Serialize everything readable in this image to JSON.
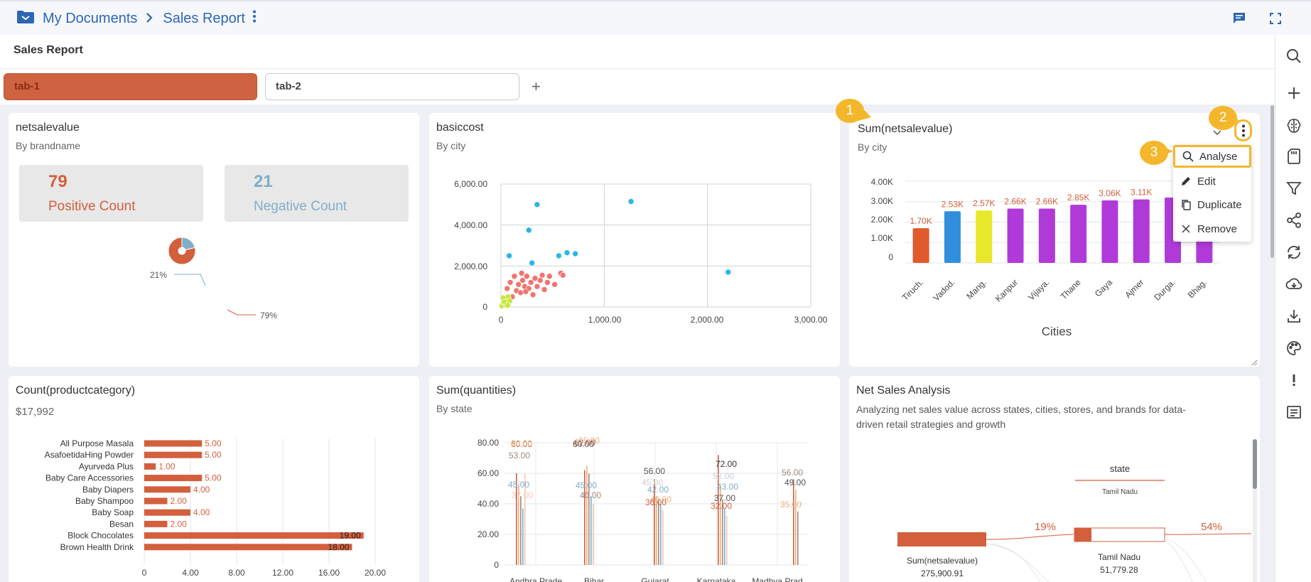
{
  "header": {
    "root_crumb": "My Documents",
    "report_crumb": "Sales Report",
    "page_title": "Sales Report"
  },
  "tabs": [
    {
      "label": "tab-1",
      "active": true
    },
    {
      "label": "tab-2",
      "active": false
    }
  ],
  "add_tab": "+",
  "cards": {
    "net": {
      "title": "netsalevalue",
      "subtitle": "By brandname",
      "positive_value": "79",
      "positive_label": "Positive Count",
      "negative_value": "21",
      "negative_label": "Negative Count",
      "pie_neg_label": "21%",
      "pie_pos_label": "79%",
      "positive_color": "#d35f3d",
      "negative_color": "#7faec8"
    },
    "basiccost": {
      "title": "basiccost",
      "subtitle": "By city",
      "y_ticks": [
        "6,000.00",
        "4,000.00",
        "2,000.00",
        "0"
      ],
      "x_ticks": [
        "0",
        "1,000.00",
        "2,000.00",
        "3,000.00"
      ]
    },
    "sumnet": {
      "title": "Sum(netsalevalue)",
      "subtitle": "By city",
      "y_ticks": [
        "4.00K",
        "3.00K",
        "2.00K",
        "1.00K",
        "0"
      ],
      "xlabel": "Cities"
    },
    "count": {
      "title": "Count(productcategory)",
      "subtitle": "$17,992",
      "x_ticks": [
        "0",
        "4.00",
        "8.00",
        "12.00",
        "16.00",
        "20.00"
      ]
    },
    "qty": {
      "title": "Sum(quantities)",
      "subtitle": "By state",
      "y_ticks": [
        "80.00",
        "60.00",
        "40.00",
        "20.00",
        "0"
      ],
      "x_ticks": [
        "Andhra Prade",
        "Bihar",
        "Gujarat",
        "Karnataka",
        "Madhya Prad"
      ],
      "labels": [
        {
          "text": "60.00",
          "color": "#d35f3d"
        },
        {
          "text": "60.00",
          "color": "#e9b27c"
        },
        {
          "text": "53.00",
          "color": "#a1887f"
        },
        {
          "text": "45.00",
          "color": "#7faec8"
        },
        {
          "text": "37.00",
          "color": "#f1c9b5"
        },
        {
          "text": "65.00",
          "color": "#e9b27c"
        },
        {
          "text": "62.00",
          "color": "#d35f3d"
        },
        {
          "text": "60.00",
          "color": "#555555"
        },
        {
          "text": "45.00",
          "color": "#7faec8"
        },
        {
          "text": "40.00",
          "color": "#a1887f"
        },
        {
          "text": "56.00",
          "color": "#555555"
        },
        {
          "text": "45.00",
          "color": "#c9ced6"
        },
        {
          "text": "42.00",
          "color": "#7faec8"
        },
        {
          "text": "40.00",
          "color": "#e9b27c"
        },
        {
          "text": "36.00",
          "color": "#d35f3d"
        },
        {
          "text": "72.00",
          "color": "#333333"
        },
        {
          "text": "52.00",
          "color": "#c9ced6"
        },
        {
          "text": "43.00",
          "color": "#7faec8"
        },
        {
          "text": "37.00",
          "color": "#555555"
        },
        {
          "text": "32.00",
          "color": "#d35f3d"
        },
        {
          "text": "56.00",
          "color": "#a1887f"
        },
        {
          "text": "49.00",
          "color": "#555555"
        },
        {
          "text": "35.00",
          "color": "#e9b27c"
        }
      ]
    },
    "nsa": {
      "title": "Net Sales Analysis",
      "description": "Analyzing net sales value across states, cities, stores, and brands for data-driven retail strategies and growth",
      "col_header": "state",
      "col_sub": "Tamil Nadu",
      "left_label": "Sum(netsalevalue)",
      "left_value": "275,900.91",
      "mid_label": "Tamil Nadu",
      "mid_value": "51,779.28",
      "pct_left": "19%",
      "pct_right": "54%"
    }
  },
  "context_menu": {
    "items": [
      "Analyse",
      "Edit",
      "Duplicate",
      "Remove"
    ]
  },
  "callouts": [
    "1",
    "2",
    "3"
  ],
  "chart_data": [
    {
      "type": "bar",
      "title": "Sum(netsalevalue)",
      "subtitle": "By city",
      "xlabel": "Cities",
      "ylim": [
        0,
        4000
      ],
      "categories": [
        "Tiruch.",
        "Vadod.",
        "Mang.",
        "Kanpur",
        "Vijaya.",
        "Thane",
        "Gaya",
        "Ajmer",
        "Durga.",
        "Bhag."
      ],
      "values": [
        1700,
        2530,
        2570,
        2660,
        2660,
        2850,
        3060,
        3110,
        3200,
        3300
      ],
      "data_labels": [
        "1.70K",
        "2.53K",
        "2.57K",
        "2.66K",
        "2.66K",
        "2.85K",
        "3.06K",
        "3.11K",
        "",
        ""
      ],
      "colors": [
        "#e05a2b",
        "#2f8fdd",
        "#e8e82a",
        "#b03ad8",
        "#b03ad8",
        "#b03ad8",
        "#b03ad8",
        "#b03ad8",
        "#b03ad8",
        "#b03ad8"
      ]
    },
    {
      "type": "bar",
      "orientation": "horizontal",
      "title": "Count(productcategory)",
      "xlim": [
        0,
        20
      ],
      "categories": [
        "All Purpose Masala",
        "AsafoetidaHing Powder",
        "Ayurveda Plus",
        "Baby Care Accessories",
        "Baby Diapers",
        "Baby Shampoo",
        "Baby Soap",
        "Besan",
        "Block Chocolates",
        "Brown Health Drink"
      ],
      "values": [
        5,
        5,
        1,
        5,
        4,
        2,
        4,
        2,
        19,
        18
      ],
      "data_labels": [
        "5.00",
        "5.00",
        "1.00",
        "5.00",
        "4.00",
        "2.00",
        "4.00",
        "2.00",
        "19.00",
        "18.00"
      ],
      "color": "#d35f3d"
    },
    {
      "type": "scatter",
      "title": "basiccost",
      "subtitle": "By city",
      "xlim": [
        0,
        3000
      ],
      "ylim": [
        0,
        6000
      ],
      "series": [
        {
          "color": "#29b6e8",
          "points": [
            [
              80,
              2500
            ],
            [
              270,
              3750
            ],
            [
              300,
              2150
            ],
            [
              350,
              5000
            ],
            [
              560,
              2500
            ],
            [
              640,
              2650
            ],
            [
              720,
              2600
            ],
            [
              1260,
              5150
            ],
            [
              2200,
              1700
            ]
          ]
        },
        {
          "color": "#f07470",
          "points": [
            [
              60,
              900
            ],
            [
              90,
              1200
            ],
            [
              110,
              500
            ],
            [
              130,
              1500
            ],
            [
              150,
              800
            ],
            [
              170,
              1100
            ],
            [
              190,
              700
            ],
            [
              210,
              1300
            ],
            [
              230,
              1000
            ],
            [
              250,
              1500
            ],
            [
              270,
              900
            ],
            [
              290,
              1200
            ],
            [
              310,
              600
            ],
            [
              330,
              1400
            ],
            [
              350,
              1000
            ],
            [
              380,
              1300
            ],
            [
              420,
              850
            ],
            [
              470,
              1500
            ],
            [
              520,
              1100
            ],
            [
              580,
              1650
            ],
            [
              600,
              1550
            ],
            [
              450,
              1200
            ],
            [
              400,
              1550
            ],
            [
              240,
              750
            ],
            [
              200,
              1650
            ]
          ]
        },
        {
          "color": "#c8e63c",
          "points": [
            [
              10,
              60
            ],
            [
              25,
              200
            ],
            [
              40,
              380
            ],
            [
              55,
              150
            ],
            [
              70,
              500
            ],
            [
              85,
              300
            ],
            [
              20,
              450
            ],
            [
              45,
              100
            ],
            [
              35,
              250
            ],
            [
              65,
              80
            ]
          ]
        }
      ]
    },
    {
      "type": "pie",
      "title": "netsalevalue",
      "subtitle": "By brandname",
      "slices": [
        {
          "label": "Positive Count",
          "value": 79
        },
        {
          "label": "Negative Count",
          "value": 21
        }
      ]
    }
  ]
}
